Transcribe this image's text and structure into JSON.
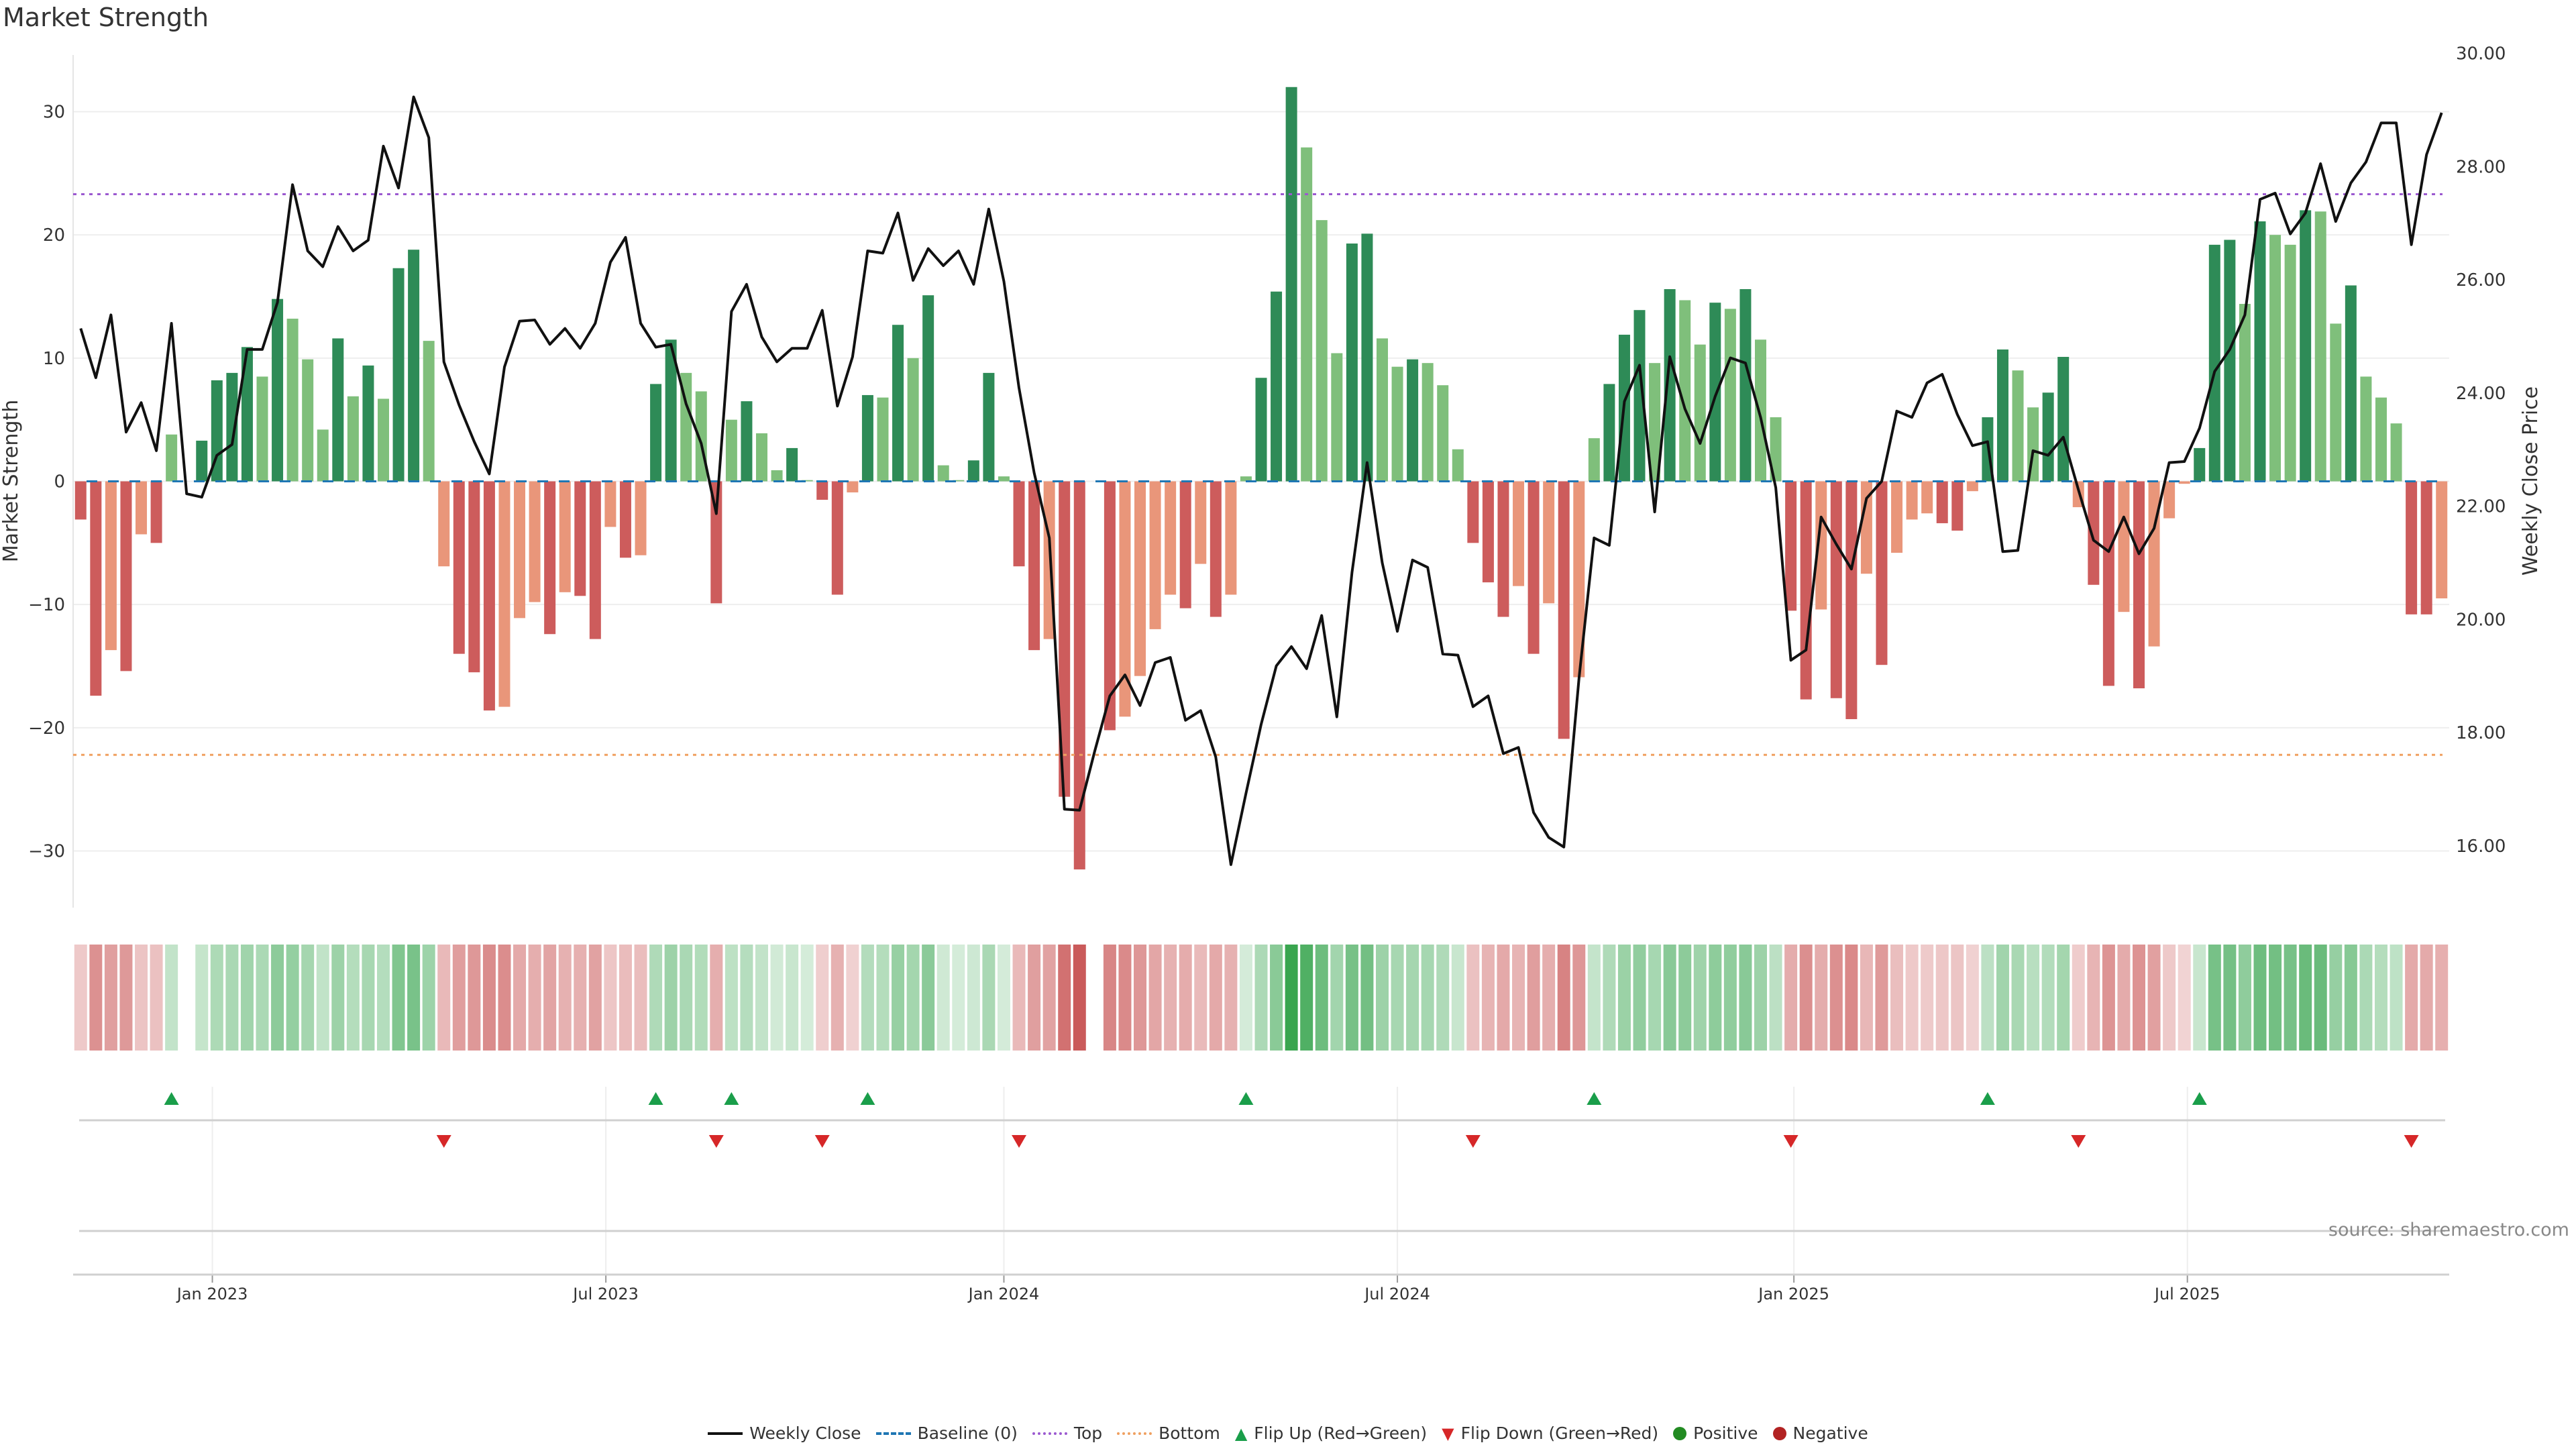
{
  "title": "Market Strength",
  "source": "source: sharemaestro.com",
  "legend": {
    "weekly_close": "Weekly Close",
    "baseline": "Baseline (0)",
    "top": "Top",
    "bottom": "Bottom",
    "flip_up": "Flip Up (Red→Green)",
    "flip_down": "Flip Down (Green→Red)",
    "positive": "Positive",
    "negative": "Negative"
  },
  "colors": {
    "pos_strong": "#2e8b57",
    "pos_weak": "#7fbf7b",
    "neg_strong": "#cd5c5c",
    "neg_weak": "#e9967a",
    "line": "#111111",
    "baseline": "#1f77b4",
    "top": "#9b59d0",
    "bottom": "#f0a060",
    "flip_up": "#1a9e4a",
    "flip_down": "#d62728",
    "positive": "#228b22",
    "negative": "#b22222"
  },
  "chart_data": {
    "type": "bar+line",
    "title": "Market Strength",
    "ylabel": "Market Strength",
    "y2label": "Weekly Close Price",
    "ylim": [
      -34.6,
      34.6
    ],
    "y2lim": [
      14.91,
      29.97
    ],
    "yticks": [
      -30,
      -20,
      -10,
      0,
      10,
      20,
      30
    ],
    "y2ticks": [
      "16.00",
      "18.00",
      "20.00",
      "22.00",
      "24.00",
      "26.00",
      "28.00",
      "30.00"
    ],
    "grid": true,
    "top_level": 23.3,
    "bottom_level": -22.2,
    "x_ticks": [
      {
        "label": "Jan 2023",
        "week": 8.7
      },
      {
        "label": "Jul 2023",
        "week": 34.7
      },
      {
        "label": "Jan 2024",
        "week": 61.0
      },
      {
        "label": "Jul 2024",
        "week": 87.0
      },
      {
        "label": "Jan 2025",
        "week": 113.2
      },
      {
        "label": "Jul 2025",
        "week": 139.2
      }
    ],
    "strength": [
      -3.1,
      -17.4,
      -13.7,
      -15.4,
      -4.3,
      -5.0,
      3.8,
      0,
      3.3,
      8.2,
      8.8,
      10.9,
      8.5,
      14.8,
      13.2,
      9.9,
      4.2,
      11.6,
      6.9,
      9.4,
      6.7,
      17.3,
      18.8,
      11.4,
      -6.9,
      -14.0,
      -15.5,
      -18.6,
      -18.3,
      -11.1,
      -9.8,
      -12.4,
      -9.0,
      -9.3,
      -12.8,
      -3.7,
      -6.2,
      -6.0,
      7.9,
      11.5,
      8.8,
      7.3,
      -9.9,
      5.0,
      6.5,
      3.9,
      0.9,
      2.7,
      0.1,
      -1.5,
      -9.2,
      -0.9,
      7.0,
      6.8,
      12.7,
      10.0,
      15.1,
      1.3,
      0.1,
      1.7,
      8.8,
      0.4,
      -6.9,
      -13.7,
      -12.8,
      -25.6,
      -31.5,
      0,
      -20.2,
      -19.1,
      -15.8,
      -12.0,
      -9.2,
      -10.3,
      -6.7,
      -11.0,
      -9.2,
      0.4,
      8.4,
      15.4,
      32.0,
      27.1,
      21.2,
      10.4,
      19.3,
      20.1,
      11.6,
      9.3,
      9.9,
      9.6,
      7.8,
      2.6,
      -5.0,
      -8.2,
      -11.0,
      -8.5,
      -14.0,
      -9.9,
      -20.9,
      -15.9,
      3.5,
      7.9,
      11.9,
      13.9,
      9.6,
      15.6,
      14.7,
      11.1,
      14.5,
      14.0,
      15.6,
      11.5,
      5.2,
      -10.5,
      -17.7,
      -10.4,
      -17.6,
      -19.3,
      -7.5,
      -14.9,
      -5.8,
      -3.1,
      -2.6,
      -3.4,
      -4.0,
      -0.8,
      5.2,
      10.7,
      9.0,
      6.0,
      7.2,
      10.1,
      -2.1,
      -8.4,
      -16.6,
      -10.6,
      -16.8,
      -13.4,
      -3.0,
      -0.2,
      2.7,
      19.2,
      19.6,
      14.4,
      21.1,
      20.0,
      19.2,
      22.0,
      21.9,
      12.8,
      15.9,
      8.5,
      6.8,
      4.7,
      -10.8,
      -10.8,
      -9.5
    ],
    "weekly_close": [
      25.14,
      24.27,
      25.38,
      23.31,
      23.83,
      22.98,
      25.23,
      22.22,
      22.16,
      22.9,
      23.09,
      24.77,
      24.77,
      25.6,
      27.68,
      26.51,
      26.23,
      26.94,
      26.51,
      26.7,
      28.36,
      27.62,
      29.23,
      28.51,
      24.55,
      23.79,
      23.14,
      22.57,
      24.46,
      25.27,
      25.29,
      24.86,
      25.14,
      24.79,
      25.23,
      26.31,
      26.75,
      25.23,
      24.81,
      24.86,
      23.81,
      23.11,
      21.87,
      25.44,
      25.92,
      24.99,
      24.55,
      24.79,
      24.79,
      25.46,
      23.77,
      24.64,
      26.51,
      26.47,
      27.18,
      25.99,
      26.55,
      26.25,
      26.51,
      25.92,
      27.25,
      25.97,
      24.09,
      22.59,
      21.44,
      16.65,
      16.63,
      17.67,
      18.65,
      19.02,
      18.48,
      19.24,
      19.33,
      18.22,
      18.39,
      17.57,
      15.67,
      16.93,
      18.15,
      19.18,
      19.52,
      19.13,
      20.07,
      18.28,
      20.83,
      22.77,
      21.0,
      19.79,
      21.05,
      20.92,
      19.39,
      19.37,
      18.46,
      18.65,
      17.63,
      17.74,
      16.59,
      16.15,
      15.98,
      18.96,
      21.44,
      21.31,
      23.85,
      24.49,
      21.9,
      24.64,
      23.72,
      23.11,
      23.94,
      24.62,
      24.53,
      23.57,
      22.33,
      19.28,
      19.46,
      21.81,
      21.33,
      20.89,
      22.14,
      22.44,
      23.68,
      23.57,
      24.18,
      24.33,
      23.62,
      23.07,
      23.14,
      21.2,
      21.22,
      22.98,
      22.9,
      23.22,
      22.29,
      21.4,
      21.2,
      21.81,
      21.16,
      21.61,
      22.77,
      22.79,
      23.38,
      24.38,
      24.77,
      25.38,
      27.42,
      27.53,
      26.81,
      27.18,
      28.05,
      27.03,
      27.71,
      28.08,
      28.77,
      28.77,
      26.62,
      28.21,
      28.95
    ],
    "flip_up_weeks": [
      6,
      38,
      43,
      52,
      77,
      100,
      126,
      140
    ],
    "flip_down_weeks": [
      24,
      42,
      49,
      62,
      92,
      113,
      132,
      154
    ]
  }
}
